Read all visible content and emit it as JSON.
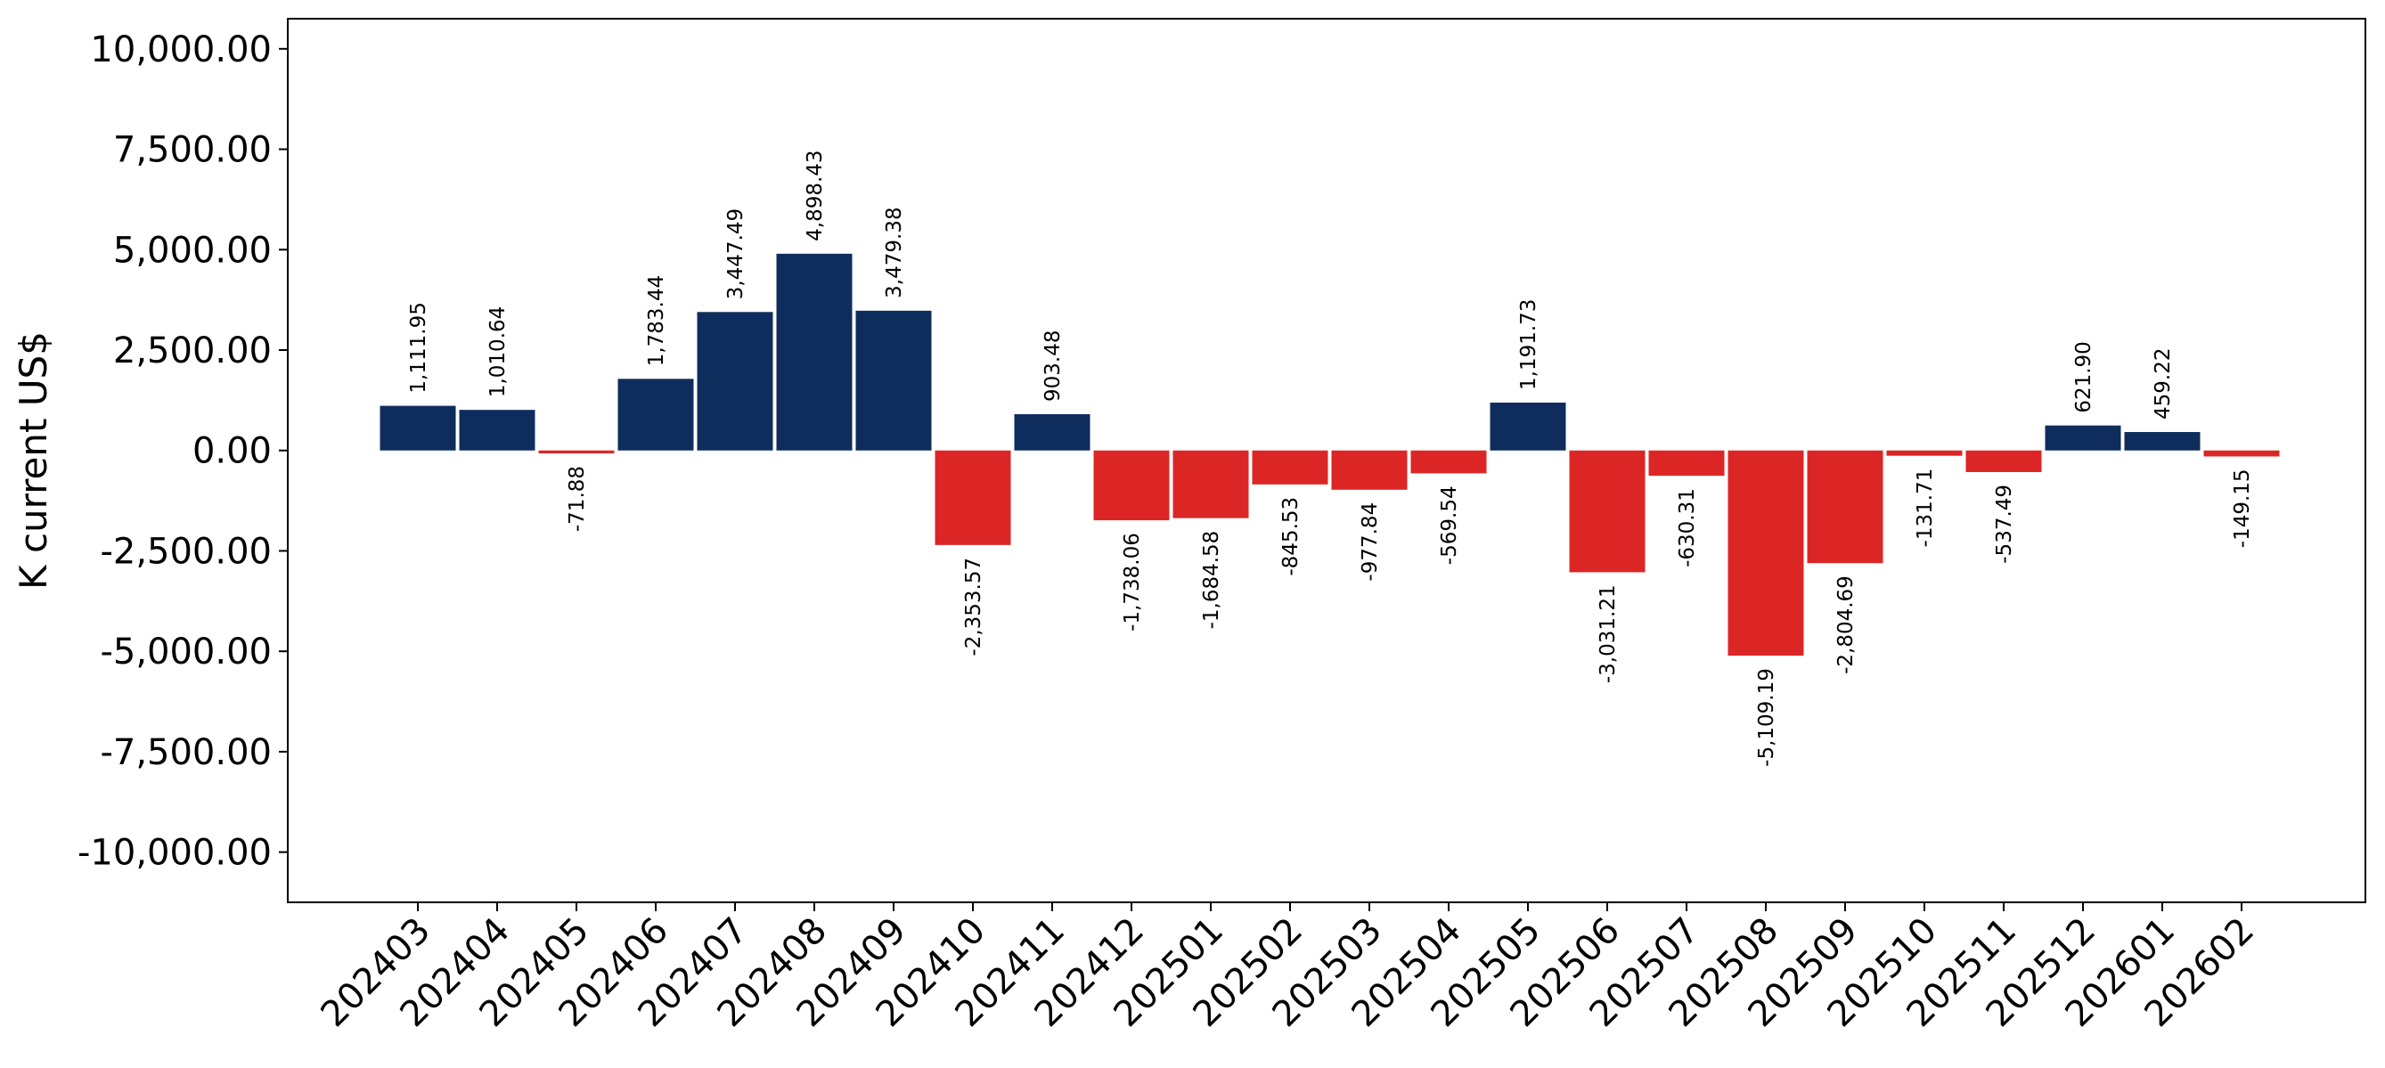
{
  "chart_data": {
    "type": "bar",
    "title": "",
    "xlabel": "",
    "ylabel": "K current US$",
    "ylim": [
      -11250,
      10750
    ],
    "yticks": [
      -10000,
      -7500,
      -5000,
      -2500,
      0,
      2500,
      5000,
      7500,
      10000
    ],
    "ytick_labels": [
      "-10,000.00",
      "-7,500.00",
      "-5,000.00",
      "-2,500.00",
      "0.00",
      "2,500.00",
      "5,000.00",
      "7,500.00",
      "10,000.00"
    ],
    "grid": false,
    "legend": "none",
    "colors": {
      "positive": "#0f2d5c",
      "negative": "#dc2626"
    },
    "categories": [
      "202403",
      "202404",
      "202405",
      "202406",
      "202407",
      "202408",
      "202409",
      "202410",
      "202411",
      "202412",
      "202501",
      "202502",
      "202503",
      "202504",
      "202505",
      "202506",
      "202507",
      "202508",
      "202509",
      "202510",
      "202511",
      "202512",
      "202601",
      "202602"
    ],
    "values": [
      1111.95,
      1010.64,
      -71.88,
      1783.44,
      3447.49,
      4898.43,
      3479.38,
      -2353.57,
      903.48,
      -1738.06,
      -1684.58,
      -845.53,
      -977.84,
      -569.54,
      1191.73,
      -3031.21,
      -630.31,
      -5109.19,
      -2804.69,
      -131.71,
      -537.49,
      621.9,
      459.22,
      -149.15
    ],
    "value_labels": [
      "1,111.95",
      "1,010.64",
      "-71.88",
      "1,783.44",
      "3,447.49",
      "4,898.43",
      "3,479.38",
      "-2,353.57",
      "903.48",
      "-1,738.06",
      "-1,684.58",
      "-845.53",
      "-977.84",
      "-569.54",
      "1,191.73",
      "-3,031.21",
      "-630.31",
      "-5,109.19",
      "-2,804.69",
      "-131.71",
      "-537.49",
      "621.90",
      "459.22",
      "-149.15"
    ]
  }
}
